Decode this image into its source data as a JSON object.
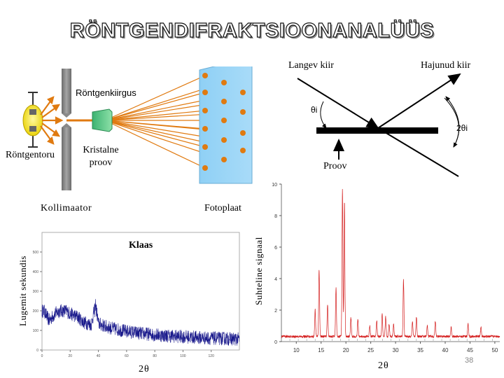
{
  "slide": {
    "title": "RÖNTGENDIFRAKTSIOONANALÜÜS",
    "page_number": "38"
  },
  "setup": {
    "xray_label": "Röntgenkiirgus",
    "tube_label": "Röntgentoru",
    "crystal_label_line1": "Kristalne",
    "crystal_label_line2": "proov",
    "collimator_label": "Kollimaator",
    "plate_label": "Fotoplaat"
  },
  "geometry": {
    "incident_label": "Langev kiir",
    "scattered_label": "Hajunud kiir",
    "sample_label": "Proov",
    "theta_label": "θi",
    "two_theta_label": "2θi"
  },
  "chart_data": [
    {
      "type": "line",
      "title": "Klaas",
      "ylabel": "Lugemit sekundis",
      "xlabel": "2θ",
      "xlim": [
        0,
        140
      ],
      "ylim": [
        0,
        600
      ],
      "x_ticks": [
        "0",
        "20",
        "40",
        "60",
        "80",
        "100",
        "120"
      ],
      "y_ticks": [
        "0",
        "100",
        "200",
        "300",
        "400",
        "500"
      ],
      "series_color": "#1a1a8c",
      "series": [
        {
          "x": [
            0,
            5,
            10,
            15,
            20,
            25,
            30,
            35,
            38,
            40,
            45,
            50,
            60,
            70,
            80,
            90,
            100,
            110,
            120,
            130,
            140
          ],
          "values": [
            220,
            150,
            190,
            210,
            185,
            170,
            140,
            130,
            235,
            135,
            120,
            110,
            95,
            85,
            78,
            72,
            68,
            64,
            60,
            58,
            55
          ]
        }
      ]
    },
    {
      "type": "line",
      "ylabel": "Suhteline signaal",
      "xlabel": "2θ",
      "xlim": [
        7,
        51
      ],
      "ylim": [
        0,
        10
      ],
      "x_ticks": [
        "10",
        "15",
        "20",
        "25",
        "30",
        "35",
        "40",
        "45",
        "50"
      ],
      "y_ticks": [
        "0",
        "2",
        "4",
        "6",
        "8",
        "10"
      ],
      "series_color": "#d42020",
      "series": [
        {
          "peaks_x": [
            13.8,
            14.6,
            16.3,
            18.0,
            19.3,
            19.7,
            21.0,
            22.4,
            24.8,
            26.2,
            27.3,
            28.0,
            28.7,
            29.6,
            31.6,
            33.4,
            34.2,
            36.4,
            38.0,
            41.2,
            44.6,
            47.2
          ],
          "peaks_y": [
            1.7,
            4.3,
            2.0,
            3.1,
            9.4,
            8.6,
            1.2,
            1.1,
            0.7,
            1.0,
            1.5,
            1.3,
            0.8,
            0.8,
            3.6,
            1.0,
            1.2,
            0.7,
            1.0,
            0.6,
            0.8,
            0.6
          ]
        }
      ]
    }
  ]
}
